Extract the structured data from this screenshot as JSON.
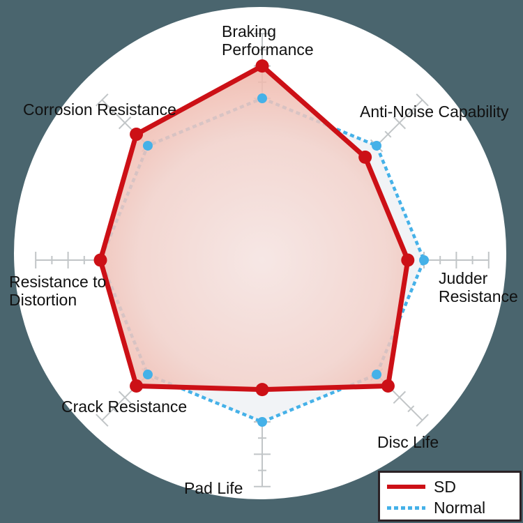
{
  "figure": {
    "description": "Radar chart comparing SD vs Normal brake disc characteristics",
    "background_color": "#4a656e",
    "circle_color": "#ffffff"
  },
  "chart_data": {
    "type": "radar",
    "categories": [
      "Braking Performance",
      "Anti-Noise Capability",
      "Judder Resistance",
      "Disc Life",
      "Pad Life",
      "Crack Resistance",
      "Resistance to Distortion",
      "Corrosion Resistance"
    ],
    "axis_range": [
      0,
      14
    ],
    "tick_interval": 1,
    "major_tick_interval": 2,
    "grid": "radial-spokes-with-perpendicular-ticks",
    "legend_position": "bottom-right",
    "series": [
      {
        "name": "SD",
        "style": "solid",
        "color": "#cc1016",
        "values": [
          12,
          9,
          9,
          11,
          8,
          11,
          10,
          11
        ]
      },
      {
        "name": "Normal",
        "style": "dotted",
        "color": "#45b1e8",
        "values": [
          10,
          10,
          10,
          10,
          10,
          10,
          10,
          10
        ]
      }
    ]
  },
  "colors": {
    "axis": "#c1c5c7",
    "center_dot": "#b6b6b6",
    "sd_fill_center": "#f7e5e2",
    "sd_fill_mid": "#f3d2cb",
    "sd_fill_edge": "#eda595",
    "normal_fill": "#f1f3f6",
    "label_text": "#111111",
    "legend_border": "#2b2226",
    "legend_background": "#ffffff"
  },
  "axis_labels": {
    "braking_performance": "Braking\nPerformance",
    "anti_noise_capability": "Anti-Noise Capability",
    "judder_resistance": "Judder\nResistance",
    "disc_life": "Disc Life",
    "pad_life": "Pad Life",
    "crack_resistance": "Crack Resistance",
    "resistance_to_distortion": "Resistance to\nDistortion",
    "corrosion_resistance": "Corrosion Resistance"
  },
  "legend": {
    "items": [
      {
        "label": "SD"
      },
      {
        "label": "Normal"
      }
    ]
  }
}
